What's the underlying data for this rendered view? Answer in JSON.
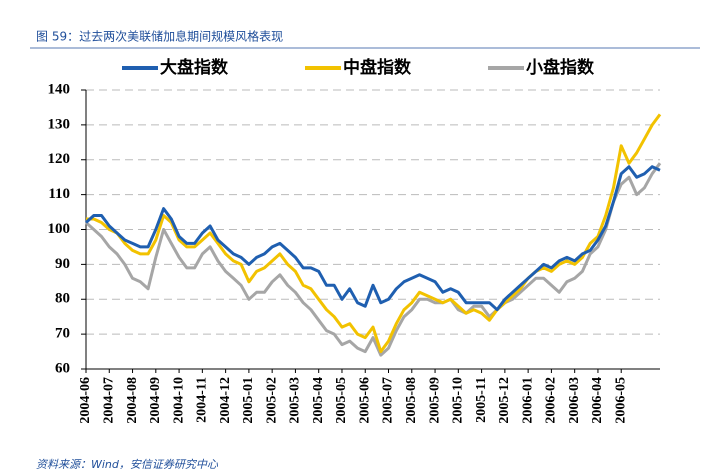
{
  "chart_data": {
    "type": "line",
    "title": "图 59：过去两次美联储加息期间规模风格表现",
    "source": "资料来源：Wind，安信证券研究中心",
    "categories": [
      "2004-06",
      null,
      null,
      "2004-07",
      null,
      null,
      "2004-08",
      null,
      null,
      "2004-09",
      null,
      null,
      "2004-10",
      null,
      null,
      "2004-11",
      null,
      null,
      "2004-12",
      null,
      null,
      "2005-01",
      null,
      null,
      "2005-02",
      null,
      null,
      "2005-03",
      null,
      null,
      "2005-04",
      null,
      null,
      "2005-05",
      null,
      null,
      "2005-06",
      null,
      null,
      "2005-07",
      null,
      null,
      "2005-08",
      null,
      null,
      "2005-09",
      null,
      null,
      "2005-10",
      null,
      null,
      "2005-11",
      null,
      null,
      "2005-12",
      null,
      null,
      "2006-01",
      null,
      null,
      "2006-02",
      null,
      null,
      "2006-03",
      null,
      null,
      "2006-04",
      null,
      null,
      "2006-05",
      null,
      null,
      null,
      null,
      null
    ],
    "series": [
      {
        "name": "大盘指数",
        "color": "#1f5fb0",
        "values": [
          102,
          104,
          104,
          101,
          99,
          97,
          96,
          95,
          95,
          100,
          106,
          103,
          98,
          96,
          96,
          99,
          101,
          97,
          95,
          93,
          92,
          90,
          92,
          93,
          95,
          96,
          94,
          92,
          89,
          89,
          88,
          84,
          84,
          80,
          83,
          79,
          78,
          84,
          79,
          80,
          83,
          85,
          86,
          87,
          86,
          85,
          82,
          83,
          82,
          79,
          79,
          79,
          79,
          77,
          80,
          82,
          84,
          86,
          88,
          90,
          89,
          91,
          92,
          91,
          93,
          94,
          97,
          101,
          108,
          116,
          118,
          115,
          116,
          118,
          117
        ]
      },
      {
        "name": "中盘指数",
        "color": "#f2c200",
        "values": [
          103,
          103,
          102,
          100,
          99,
          96,
          94,
          93,
          93,
          97,
          104,
          102,
          97,
          95,
          95,
          97,
          99,
          96,
          93,
          91,
          90,
          85,
          88,
          89,
          91,
          93,
          90,
          88,
          84,
          83,
          80,
          77,
          75,
          72,
          73,
          70,
          69,
          72,
          65,
          68,
          73,
          77,
          79,
          82,
          81,
          80,
          79,
          80,
          78,
          76,
          77,
          76,
          74,
          77,
          79,
          81,
          83,
          86,
          88,
          89,
          88,
          90,
          91,
          90,
          92,
          96,
          98,
          104,
          112,
          124,
          119,
          122,
          126,
          130,
          133
        ]
      },
      {
        "name": "小盘指数",
        "color": "#a6a6a6",
        "values": [
          102,
          100,
          98,
          95,
          93,
          90,
          86,
          85,
          83,
          92,
          100,
          96,
          92,
          89,
          89,
          93,
          95,
          91,
          88,
          86,
          84,
          80,
          82,
          82,
          85,
          87,
          84,
          82,
          79,
          77,
          74,
          71,
          70,
          67,
          68,
          66,
          65,
          69,
          64,
          66,
          71,
          75,
          77,
          80,
          80,
          79,
          79,
          80,
          77,
          76,
          78,
          78,
          75,
          77,
          79,
          80,
          82,
          84,
          86,
          86,
          84,
          82,
          85,
          86,
          88,
          93,
          95,
          100,
          108,
          113,
          115,
          110,
          112,
          116,
          119
        ]
      }
    ],
    "ylim": [
      60,
      140
    ],
    "yticks": [
      60,
      70,
      80,
      90,
      100,
      110,
      120,
      130,
      140
    ],
    "grid": true,
    "legend": "top"
  }
}
